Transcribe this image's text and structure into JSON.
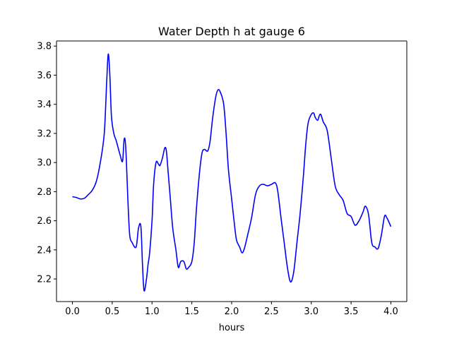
{
  "chart_data": {
    "type": "line",
    "title": "Water Depth h at gauge 6",
    "xlabel": "hours",
    "ylabel": "",
    "xlim": [
      -0.2,
      4.2
    ],
    "ylim": [
      2.045,
      3.835
    ],
    "xticks": [
      0.0,
      0.5,
      1.0,
      1.5,
      2.0,
      2.5,
      3.0,
      3.5,
      4.0
    ],
    "xtick_labels": [
      "0.0",
      "0.5",
      "1.0",
      "1.5",
      "2.0",
      "2.5",
      "3.0",
      "3.5",
      "4.0"
    ],
    "yticks": [
      2.2,
      2.4,
      2.6,
      2.8,
      3.0,
      3.2,
      3.4,
      3.6,
      3.8
    ],
    "ytick_labels": [
      "2.2",
      "2.4",
      "2.6",
      "2.8",
      "3.0",
      "3.2",
      "3.4",
      "3.6",
      "3.8"
    ],
    "grid": false,
    "series": [
      {
        "color": "#0000ff",
        "x": [
          0.0,
          0.05,
          0.1,
          0.15,
          0.2,
          0.25,
          0.3,
          0.35,
          0.4,
          0.43,
          0.45,
          0.47,
          0.49,
          0.52,
          0.55,
          0.6,
          0.63,
          0.65,
          0.67,
          0.7,
          0.72,
          0.75,
          0.8,
          0.83,
          0.86,
          0.88,
          0.9,
          0.93,
          0.95,
          0.97,
          1.0,
          1.02,
          1.05,
          1.08,
          1.1,
          1.13,
          1.16,
          1.18,
          1.2,
          1.23,
          1.26,
          1.3,
          1.33,
          1.36,
          1.4,
          1.43,
          1.46,
          1.5,
          1.53,
          1.56,
          1.6,
          1.63,
          1.66,
          1.7,
          1.73,
          1.76,
          1.8,
          1.83,
          1.86,
          1.9,
          1.93,
          1.96,
          2.0,
          2.03,
          2.06,
          2.1,
          2.13,
          2.16,
          2.2,
          2.25,
          2.3,
          2.35,
          2.4,
          2.45,
          2.5,
          2.55,
          2.58,
          2.62,
          2.66,
          2.7,
          2.74,
          2.78,
          2.82,
          2.86,
          2.9,
          2.93,
          2.96,
          3.0,
          3.03,
          3.05,
          3.08,
          3.1,
          3.12,
          3.15,
          3.2,
          3.25,
          3.3,
          3.35,
          3.4,
          3.45,
          3.5,
          3.55,
          3.6,
          3.65,
          3.68,
          3.72,
          3.76,
          3.8,
          3.84,
          3.88,
          3.92,
          3.95,
          4.0
        ],
        "y": [
          2.765,
          2.76,
          2.75,
          2.755,
          2.78,
          2.81,
          2.87,
          3.0,
          3.2,
          3.55,
          3.745,
          3.6,
          3.32,
          3.2,
          3.15,
          3.05,
          3.01,
          3.16,
          3.1,
          2.7,
          2.5,
          2.45,
          2.42,
          2.55,
          2.56,
          2.3,
          2.12,
          2.2,
          2.3,
          2.38,
          2.6,
          2.85,
          3.0,
          2.99,
          2.98,
          3.03,
          3.1,
          3.08,
          2.95,
          2.75,
          2.55,
          2.4,
          2.28,
          2.32,
          2.32,
          2.27,
          2.28,
          2.32,
          2.45,
          2.7,
          2.95,
          3.07,
          3.09,
          3.08,
          3.15,
          3.3,
          3.45,
          3.5,
          3.48,
          3.4,
          3.2,
          2.95,
          2.75,
          2.6,
          2.47,
          2.42,
          2.38,
          2.41,
          2.5,
          2.62,
          2.78,
          2.84,
          2.85,
          2.84,
          2.85,
          2.86,
          2.8,
          2.62,
          2.45,
          2.28,
          2.18,
          2.25,
          2.45,
          2.65,
          2.9,
          3.12,
          3.27,
          3.33,
          3.34,
          3.31,
          3.29,
          3.32,
          3.33,
          3.28,
          3.22,
          3.03,
          2.84,
          2.78,
          2.74,
          2.65,
          2.63,
          2.57,
          2.6,
          2.66,
          2.7,
          2.64,
          2.45,
          2.42,
          2.41,
          2.5,
          2.63,
          2.62,
          2.56
        ]
      }
    ]
  }
}
